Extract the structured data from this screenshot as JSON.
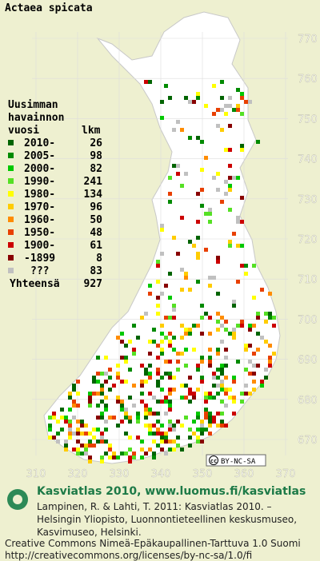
{
  "title": "Actaea spicata",
  "legend": {
    "heading": [
      "Uusimman",
      "havainnon"
    ],
    "col_year": "vuosi",
    "col_count": "lkm",
    "rows": [
      {
        "label": "2010-",
        "count": 26,
        "color": "#006400"
      },
      {
        "label": "2005-",
        "count": 98,
        "color": "#008a00"
      },
      {
        "label": "2000-",
        "count": 82,
        "color": "#00c800"
      },
      {
        "label": "1990-",
        "count": 241,
        "color": "#55e024"
      },
      {
        "label": "1980-",
        "count": 134,
        "color": "#ffff00"
      },
      {
        "label": "1970-",
        "count": 96,
        "color": "#ffcc00"
      },
      {
        "label": "1960-",
        "count": 50,
        "color": "#ff8c00"
      },
      {
        "label": "1950-",
        "count": 48,
        "color": "#e84000"
      },
      {
        "label": "1900-",
        "count": 61,
        "color": "#cc0000"
      },
      {
        "label": "-1899",
        "count": 8,
        "color": "#880000"
      },
      {
        "label": "???",
        "count": 83,
        "color": "#c0c0c0"
      }
    ],
    "total_label": "Yhteensä",
    "total": 927
  },
  "grid": {
    "xticks": [
      310,
      320,
      330,
      340,
      350,
      360,
      370
    ],
    "yticks": [
      670,
      680,
      690,
      700,
      710,
      720,
      730,
      740,
      750,
      760,
      770
    ]
  },
  "badge": {
    "icon": "cc",
    "text": "BY-NC-SA"
  },
  "footer": {
    "headline": "Kasviatlas 2010, www.luomus.fi/kasviatlas",
    "citation": [
      "Lampinen, R. & Lahti, T. 2011: Kasviatlas 2010. –",
      "Helsingin Yliopisto, Luonnontieteellinen keskusmuseo,",
      "Kasvimuseo, Helsinki."
    ],
    "license": [
      "Creative Commons Nimeä-Epäkaupallinen-Tarttuva 1.0 Suomi",
      "http://creativecommons.org/licenses/by-nc-sa/1.0/fi"
    ]
  }
}
